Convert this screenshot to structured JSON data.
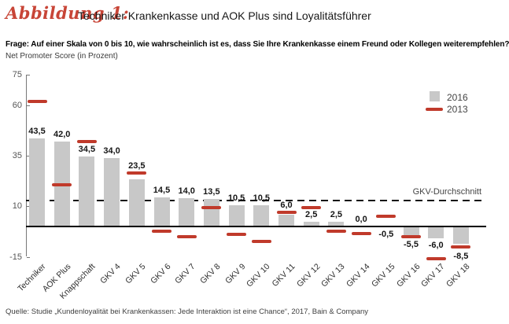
{
  "header": {
    "figure_label": "Abbildung 1:",
    "title": "Techniker Krankenkasse und AOK Plus sind Loyalitätsführer"
  },
  "subtitle": {
    "question": "Frage: Auf einer Skala von 0 bis 10, wie wahrscheinlich ist es, dass Sie Ihre Krankenkasse einem Freund oder Kollegen weiterempfehlen?",
    "measure": "Net Promoter Score (in Prozent)"
  },
  "legend": {
    "items": [
      {
        "label": "2016",
        "swatch": "bar",
        "color": "#c8c8c8"
      },
      {
        "label": "2013",
        "swatch": "dash",
        "color": "#c03a2b"
      }
    ]
  },
  "chart_data": {
    "type": "bar",
    "title": "Techniker Krankenkasse und AOK Plus sind Loyalitätsführer",
    "ylabel": "Net Promoter Score (in Prozent)",
    "categories": [
      "Techniker",
      "AOK Plus",
      "Knappschaft",
      "GKV 4",
      "GKV 5",
      "GKV 6",
      "GKV 7",
      "GKV 8",
      "GKV 9",
      "GKV 10",
      "GKV 11",
      "GKV 12",
      "GKV 13",
      "GKV 14",
      "GKV 15",
      "GKV 16",
      "GKV 17",
      "GKV 18"
    ],
    "series": [
      {
        "name": "2016",
        "style": "bar",
        "color": "#c8c8c8",
        "values": [
          43.5,
          42.0,
          34.5,
          34.0,
          23.5,
          14.5,
          14.0,
          13.5,
          10.5,
          10.5,
          6.0,
          2.5,
          2.5,
          0.0,
          -0.5,
          -5.5,
          -6.0,
          -8.5
        ],
        "labels": [
          "43,5",
          "42,0",
          "34,5",
          "34,0",
          "23,5",
          "14,5",
          "14,0",
          "13,5",
          "10,5",
          "10,5",
          "6,0",
          "2,5",
          "2,5",
          "0,0",
          "-0,5",
          "-5,5",
          "-6,0",
          "-8,5"
        ]
      },
      {
        "name": "2013",
        "style": "dash",
        "color": "#c03a2b",
        "values": [
          62,
          20.5,
          42,
          null,
          26.5,
          -2.5,
          -5,
          9.5,
          -4,
          -7.5,
          7,
          9.5,
          -2.5,
          -3.5,
          5,
          -5,
          -16,
          -10
        ]
      }
    ],
    "reference_line": {
      "label": "GKV-Durchschnitt",
      "value": 13,
      "style": "dashed"
    },
    "y_axis": {
      "min": -15,
      "max": 75,
      "ticks": [
        75,
        60,
        35,
        10,
        -15
      ]
    },
    "grid": false,
    "legend_position": "top-right"
  },
  "source": {
    "text": "Quelle: Studie „Kundenloyalität bei Krankenkassen: Jede Interaktion ist eine Chance“, 2017, Bain & Company"
  }
}
